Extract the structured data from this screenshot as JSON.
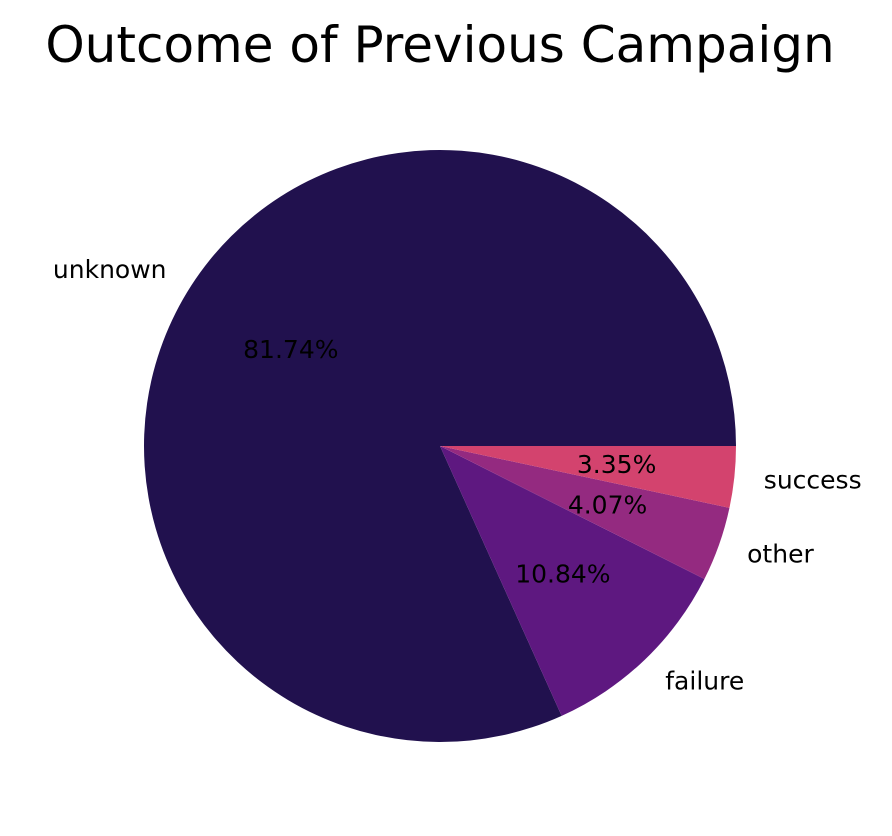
{
  "chart_data": {
    "type": "pie",
    "title": "Outcome of Previous Campaign",
    "slices": [
      {
        "label": "unknown",
        "value": 81.74,
        "pct_label": "81.74%",
        "color": "#21114e"
      },
      {
        "label": "failure",
        "value": 10.84,
        "pct_label": "10.84%",
        "color": "#5e1880"
      },
      {
        "label": "other",
        "value": 4.07,
        "pct_label": "4.07%",
        "color": "#942a80"
      },
      {
        "label": "success",
        "value": 3.35,
        "pct_label": "3.35%",
        "color": "#d3436e"
      }
    ],
    "start_angle": 0,
    "direction": "counterclockwise",
    "legend": "none"
  }
}
